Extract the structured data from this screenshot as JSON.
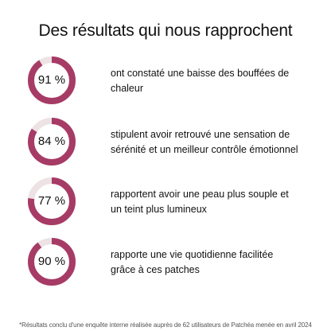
{
  "title": "Des résultats qui nous rapprochent",
  "colors": {
    "accent": "#a63b66",
    "track": "#ede2e4",
    "text": "#111111"
  },
  "chart_data": {
    "type": "donut",
    "title": "Des résultats qui nous rapprochent",
    "items": [
      {
        "value": 91,
        "label": "91 %",
        "description": "ont constaté une baisse des bouffées de chaleur"
      },
      {
        "value": 84,
        "label": "84 %",
        "description": "stipulent avoir retrouvé une sensation de sérénité et un meilleur contrôle émotionnel"
      },
      {
        "value": 77,
        "label": "77 %",
        "description": "rapportent avoir une peau plus souple et un teint plus lumineux"
      },
      {
        "value": 90,
        "label": "90 %",
        "description": "rapporte une vie quotidienne facilitée grâce à ces patches"
      }
    ]
  },
  "footnote": "*Résultats conclu d'une enquête interne réalisée auprès de 62 utilisateurs de Patchéa menée en avril 2024"
}
